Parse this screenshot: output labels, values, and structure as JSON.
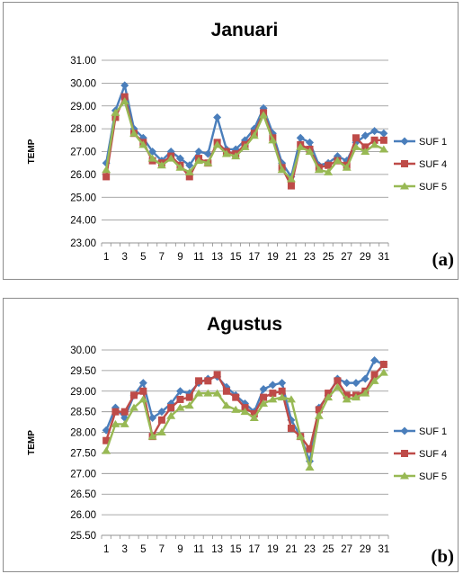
{
  "chart_data": [
    {
      "type": "line",
      "title": "Januari",
      "ylabel": "TEMP",
      "xlabel": "",
      "panel_label": "(a)",
      "ylim": [
        23.0,
        31.0
      ],
      "yticks": [
        "23.00",
        "24.00",
        "25.00",
        "26.00",
        "27.00",
        "28.00",
        "29.00",
        "30.00",
        "31.00"
      ],
      "x": [
        1,
        2,
        3,
        4,
        5,
        6,
        7,
        8,
        9,
        10,
        11,
        12,
        13,
        14,
        15,
        16,
        17,
        18,
        19,
        20,
        21,
        22,
        23,
        24,
        25,
        26,
        27,
        28,
        29,
        30,
        31
      ],
      "xticks": [
        "1",
        "3",
        "5",
        "7",
        "9",
        "11",
        "13",
        "15",
        "17",
        "19",
        "21",
        "23",
        "25",
        "27",
        "29",
        "31"
      ],
      "grid": true,
      "legend_position": "right",
      "series": [
        {
          "name": "SUF 1",
          "color": "#4a7ebb",
          "marker": "diamond",
          "values": [
            26.5,
            28.8,
            29.9,
            28.0,
            27.6,
            27.0,
            26.6,
            27.0,
            26.7,
            26.4,
            27.0,
            26.9,
            28.5,
            27.1,
            27.1,
            27.5,
            28.0,
            28.9,
            27.8,
            26.5,
            25.9,
            27.6,
            27.4,
            26.4,
            26.5,
            26.8,
            26.6,
            27.4,
            27.7,
            27.9,
            27.8
          ]
        },
        {
          "name": "SUF 4",
          "color": "#be4b48",
          "marker": "square",
          "values": [
            25.9,
            28.5,
            29.4,
            27.8,
            27.4,
            26.6,
            26.5,
            26.8,
            26.4,
            25.9,
            26.7,
            26.5,
            27.4,
            27.0,
            26.9,
            27.3,
            27.8,
            28.7,
            27.6,
            26.3,
            25.5,
            27.3,
            27.1,
            26.3,
            26.4,
            26.6,
            26.4,
            27.6,
            27.2,
            27.5,
            27.5
          ]
        },
        {
          "name": "SUF 5",
          "color": "#98b954",
          "marker": "triangle",
          "values": [
            26.2,
            28.7,
            29.2,
            27.8,
            27.3,
            26.7,
            26.4,
            26.7,
            26.3,
            26.1,
            26.6,
            26.5,
            27.3,
            26.9,
            26.8,
            27.2,
            27.7,
            28.6,
            27.5,
            26.2,
            25.8,
            27.2,
            27.0,
            26.2,
            26.1,
            26.6,
            26.3,
            27.2,
            27.0,
            27.3,
            27.1
          ]
        }
      ]
    },
    {
      "type": "line",
      "title": "Agustus",
      "ylabel": "TEMP",
      "xlabel": "",
      "panel_label": "(b)",
      "ylim": [
        25.5,
        30.0
      ],
      "yticks": [
        "25.50",
        "26.00",
        "26.50",
        "27.00",
        "27.50",
        "28.00",
        "28.50",
        "29.00",
        "29.50",
        "30.00"
      ],
      "x": [
        1,
        2,
        3,
        4,
        5,
        6,
        7,
        8,
        9,
        10,
        11,
        12,
        13,
        14,
        15,
        16,
        17,
        18,
        19,
        20,
        21,
        22,
        23,
        24,
        25,
        26,
        27,
        28,
        29,
        30,
        31
      ],
      "xticks": [
        "1",
        "3",
        "5",
        "7",
        "9",
        "11",
        "13",
        "15",
        "17",
        "19",
        "21",
        "23",
        "25",
        "27",
        "29",
        "31"
      ],
      "grid": true,
      "legend_position": "right",
      "series": [
        {
          "name": "SUF 1",
          "color": "#4a7ebb",
          "marker": "diamond",
          "values": [
            28.05,
            28.6,
            28.35,
            28.9,
            29.2,
            28.35,
            28.5,
            28.7,
            29.0,
            28.95,
            29.2,
            29.3,
            29.35,
            29.1,
            28.9,
            28.7,
            28.5,
            29.05,
            29.15,
            29.2,
            28.3,
            27.9,
            27.3,
            28.6,
            28.9,
            29.3,
            29.2,
            29.2,
            29.3,
            29.75,
            29.65
          ]
        },
        {
          "name": "SUF 4",
          "color": "#be4b48",
          "marker": "square",
          "values": [
            27.8,
            28.5,
            28.5,
            28.9,
            29.0,
            27.9,
            28.3,
            28.6,
            28.8,
            28.85,
            29.25,
            29.25,
            29.4,
            29.0,
            28.85,
            28.6,
            28.45,
            28.85,
            28.95,
            29.0,
            28.1,
            27.9,
            27.6,
            28.55,
            28.95,
            29.25,
            28.9,
            28.9,
            29.0,
            29.4,
            29.65
          ]
        },
        {
          "name": "SUF 5",
          "color": "#98b954",
          "marker": "triangle",
          "values": [
            27.55,
            28.2,
            28.2,
            28.6,
            28.8,
            27.9,
            28.0,
            28.4,
            28.6,
            28.65,
            28.95,
            28.95,
            28.95,
            28.65,
            28.55,
            28.5,
            28.35,
            28.7,
            28.8,
            28.85,
            28.8,
            27.9,
            27.15,
            28.4,
            28.85,
            29.1,
            28.8,
            28.85,
            28.95,
            29.25,
            29.45
          ]
        }
      ]
    }
  ]
}
